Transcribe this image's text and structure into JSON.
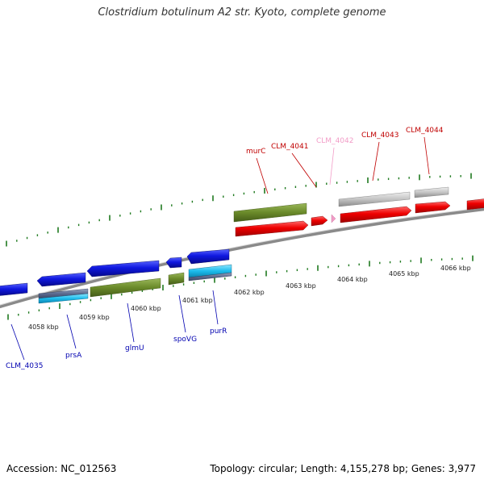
{
  "title": "Clostridium botulinum A2 str. Kyoto, complete genome",
  "footer": {
    "accession": "Accession: NC_012563",
    "summary": "Topology: circular; Length: 4,155,278 bp; Genes: 3,977"
  },
  "colors": {
    "cds_forward": "#e00000",
    "cds_reverse": "#0a10d8",
    "gene": "#6e8c2e",
    "cds_light_blue": "#23c0ee",
    "cds_gray": "#b8b8b8",
    "pink": "#f29cc7",
    "backbone": "#8a8a8a",
    "ticks": "#1f7a1f"
  },
  "scale": {
    "kbp_labels": [
      "4058 kbp",
      "4059 kbp",
      "4060 kbp",
      "4061 kbp",
      "4062 kbp",
      "4063 kbp",
      "4064 kbp",
      "4065 kbp",
      "4066 kbp"
    ]
  },
  "genes_top": [
    {
      "name": "murC",
      "color": "#c00000"
    },
    {
      "name": "CLM_4041",
      "color": "#c00000"
    },
    {
      "name": "CLM_4042",
      "color": "#f29cc7"
    },
    {
      "name": "CLM_4043",
      "color": "#c00000"
    },
    {
      "name": "CLM_4044",
      "color": "#c00000"
    }
  ],
  "genes_bottom": [
    {
      "name": "CLM_4035",
      "color": "#0000b0"
    },
    {
      "name": "prsA",
      "color": "#0000b0"
    },
    {
      "name": "glmU",
      "color": "#0000b0"
    },
    {
      "name": "spoVG",
      "color": "#0000b0"
    },
    {
      "name": "purR",
      "color": "#0000b0"
    }
  ]
}
